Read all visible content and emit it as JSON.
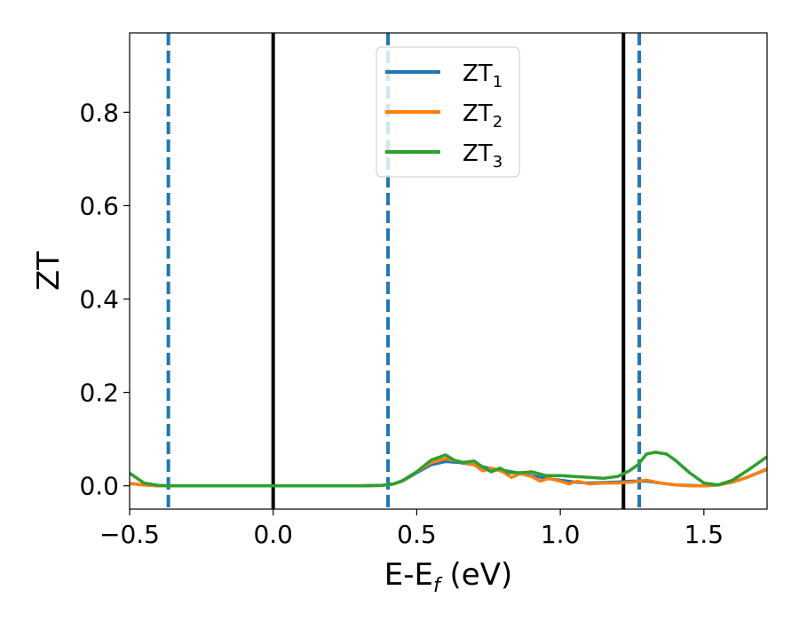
{
  "chart_data": {
    "type": "line",
    "xlabel": "E-E",
    "xlabel_sub": "f",
    "xlabel_unit": " (eV)",
    "ylabel": "ZT",
    "xlim": [
      -0.5,
      1.72
    ],
    "ylim": [
      -0.05,
      0.97
    ],
    "xticks": [
      -0.5,
      0.0,
      0.5,
      1.0,
      1.5
    ],
    "xtick_labels": [
      "−0.5",
      "0.0",
      "0.5",
      "1.0",
      "1.5"
    ],
    "yticks": [
      0.0,
      0.2,
      0.4,
      0.6,
      0.8
    ],
    "ytick_labels": [
      "0.0",
      "0.2",
      "0.4",
      "0.6",
      "0.8"
    ],
    "grid": false,
    "legend": {
      "placement": "top-center"
    },
    "vertical_lines": [
      {
        "x": -0.365,
        "style": "dashed",
        "color": "#1f77b4"
      },
      {
        "x": 0.0,
        "style": "solid",
        "color": "#000000"
      },
      {
        "x": 0.4,
        "style": "dashed",
        "color": "#1f77b4"
      },
      {
        "x": 1.22,
        "style": "solid",
        "color": "#000000"
      },
      {
        "x": 1.275,
        "style": "dashed",
        "color": "#1f77b4"
      }
    ],
    "series": [
      {
        "name": "ZT",
        "sub": "1",
        "color": "#1f77b4",
        "x": [
          -0.5,
          -0.45,
          -0.4,
          -0.35,
          -0.3,
          0.0,
          0.3,
          0.38,
          0.42,
          0.45,
          0.5,
          0.55,
          0.6,
          0.65,
          0.7,
          0.75,
          0.8,
          0.85,
          0.9,
          0.95,
          1.0,
          1.05,
          1.1,
          1.15,
          1.2,
          1.25,
          1.3,
          1.35,
          1.4,
          1.45,
          1.5,
          1.55,
          1.6,
          1.65,
          1.72
        ],
        "y": [
          0.005,
          0.002,
          0.0,
          0.0,
          0.0,
          0.0,
          0.0,
          0.001,
          0.004,
          0.01,
          0.028,
          0.045,
          0.052,
          0.05,
          0.045,
          0.038,
          0.033,
          0.028,
          0.022,
          0.016,
          0.012,
          0.008,
          0.006,
          0.007,
          0.008,
          0.01,
          0.01,
          0.006,
          0.002,
          0.001,
          0.0,
          0.002,
          0.008,
          0.018,
          0.035
        ]
      },
      {
        "name": "ZT",
        "sub": "2",
        "color": "#ff7f0e",
        "x": [
          -0.5,
          -0.45,
          -0.4,
          -0.35,
          -0.3,
          0.0,
          0.3,
          0.38,
          0.42,
          0.45,
          0.5,
          0.55,
          0.6,
          0.65,
          0.7,
          0.73,
          0.76,
          0.8,
          0.83,
          0.86,
          0.9,
          0.93,
          0.96,
          1.0,
          1.03,
          1.06,
          1.1,
          1.15,
          1.2,
          1.25,
          1.3,
          1.35,
          1.4,
          1.45,
          1.5,
          1.55,
          1.6,
          1.65,
          1.72
        ],
        "y": [
          0.005,
          0.002,
          0.0,
          0.0,
          0.0,
          0.0,
          0.0,
          0.001,
          0.004,
          0.01,
          0.03,
          0.05,
          0.058,
          0.052,
          0.045,
          0.032,
          0.038,
          0.03,
          0.018,
          0.026,
          0.02,
          0.01,
          0.016,
          0.01,
          0.004,
          0.01,
          0.004,
          0.006,
          0.006,
          0.008,
          0.012,
          0.006,
          0.002,
          0.0,
          0.0,
          0.002,
          0.008,
          0.018,
          0.036
        ]
      },
      {
        "name": "ZT",
        "sub": "3",
        "color": "#2ca02c",
        "x": [
          -0.5,
          -0.45,
          -0.4,
          -0.35,
          -0.3,
          0.0,
          0.3,
          0.38,
          0.42,
          0.45,
          0.5,
          0.55,
          0.6,
          0.63,
          0.66,
          0.7,
          0.73,
          0.76,
          0.79,
          0.82,
          0.86,
          0.9,
          0.95,
          1.0,
          1.05,
          1.1,
          1.15,
          1.2,
          1.24,
          1.27,
          1.3,
          1.33,
          1.37,
          1.4,
          1.45,
          1.5,
          1.55,
          1.6,
          1.65,
          1.72
        ],
        "y": [
          0.027,
          0.006,
          0.001,
          0.0,
          0.0,
          0.0,
          0.0,
          0.001,
          0.004,
          0.011,
          0.03,
          0.055,
          0.066,
          0.055,
          0.05,
          0.053,
          0.04,
          0.03,
          0.038,
          0.028,
          0.028,
          0.03,
          0.022,
          0.022,
          0.02,
          0.018,
          0.016,
          0.02,
          0.032,
          0.045,
          0.068,
          0.072,
          0.068,
          0.055,
          0.028,
          0.006,
          0.002,
          0.012,
          0.032,
          0.062
        ]
      }
    ]
  }
}
